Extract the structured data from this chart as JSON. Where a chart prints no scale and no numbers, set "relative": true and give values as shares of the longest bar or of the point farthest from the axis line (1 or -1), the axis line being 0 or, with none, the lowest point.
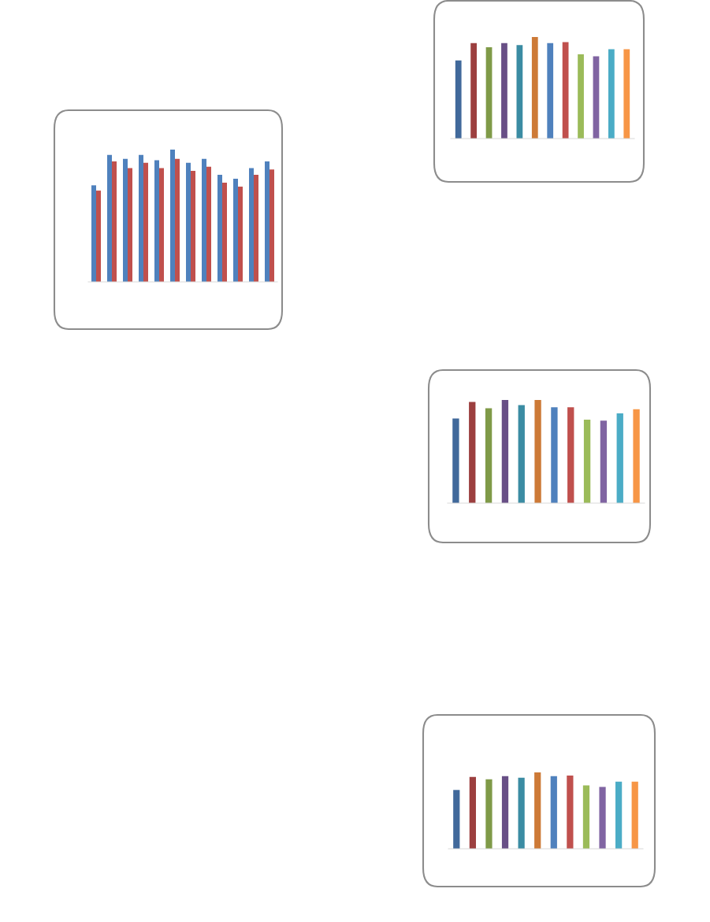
{
  "chart_data": [
    {
      "type": "bar",
      "relative": true,
      "categories": [
        null,
        null,
        null,
        null,
        null,
        null,
        null,
        null,
        null,
        null,
        null,
        null
      ],
      "series": [
        {
          "color": "#4f81bd",
          "values": [
            0.73,
            0.96,
            0.93,
            0.96,
            0.92,
            1,
            0.9,
            0.93,
            0.81,
            0.78,
            0.86,
            0.91
          ]
        },
        {
          "color": "#c0504d",
          "values": [
            0.69,
            0.91,
            0.86,
            0.9,
            0.86,
            0.93,
            0.84,
            0.87,
            0.75,
            0.72,
            0.81,
            0.85
          ]
        }
      ]
    },
    {
      "type": "bar",
      "relative": true,
      "categories": [
        null,
        null,
        null,
        null,
        null,
        null,
        null,
        null,
        null,
        null,
        null,
        null
      ],
      "values": [
        0.77,
        0.94,
        0.9,
        0.94,
        0.92,
        1,
        0.94,
        0.95,
        0.83,
        0.81,
        0.88,
        0.88
      ],
      "colors": [
        "#41699b",
        "#9c3f3f",
        "#7f9a48",
        "#684f86",
        "#3b8ca3",
        "#cd7a37",
        "#4f81bd",
        "#c0504d",
        "#9bbb59",
        "#8064a2",
        "#4bacc6",
        "#f79646"
      ]
    },
    {
      "type": "bar",
      "relative": true,
      "categories": [
        null,
        null,
        null,
        null,
        null,
        null,
        null,
        null,
        null,
        null,
        null,
        null
      ],
      "values": [
        0.82,
        0.98,
        0.92,
        1,
        0.95,
        1,
        0.93,
        0.93,
        0.81,
        0.8,
        0.87,
        0.91
      ],
      "colors": [
        "#41699b",
        "#9c3f3f",
        "#7f9a48",
        "#684f86",
        "#3b8ca3",
        "#cd7a37",
        "#4f81bd",
        "#c0504d",
        "#9bbb59",
        "#8064a2",
        "#4bacc6",
        "#f79646"
      ]
    },
    {
      "type": "bar",
      "relative": true,
      "categories": [
        null,
        null,
        null,
        null,
        null,
        null,
        null,
        null,
        null,
        null,
        null,
        null
      ],
      "values": [
        0.77,
        0.94,
        0.91,
        0.95,
        0.93,
        1,
        0.95,
        0.96,
        0.83,
        0.81,
        0.88,
        0.88
      ],
      "colors": [
        "#41699b",
        "#9c3f3f",
        "#7f9a48",
        "#684f86",
        "#3b8ca3",
        "#cd7a37",
        "#4f81bd",
        "#c0504d",
        "#9bbb59",
        "#8064a2",
        "#4bacc6",
        "#f79646"
      ]
    }
  ]
}
